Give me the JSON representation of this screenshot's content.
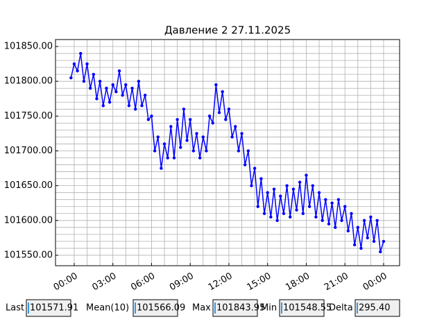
{
  "chart_data": {
    "type": "line",
    "title": "Давление 2 27.11.2025",
    "x": [
      -0.25,
      0,
      0.25,
      0.5,
      0.75,
      1,
      1.25,
      1.5,
      1.75,
      2,
      2.25,
      2.5,
      2.75,
      3,
      3.25,
      3.5,
      3.75,
      4,
      4.25,
      4.5,
      4.75,
      5,
      5.25,
      5.5,
      5.75,
      6,
      6.25,
      6.5,
      6.75,
      7,
      7.25,
      7.5,
      7.75,
      8,
      8.25,
      8.5,
      8.75,
      9,
      9.25,
      9.5,
      9.75,
      10,
      10.25,
      10.5,
      10.75,
      11,
      11.25,
      11.5,
      11.75,
      12,
      12.25,
      12.5,
      12.75,
      13,
      13.25,
      13.5,
      13.75,
      14,
      14.25,
      14.5,
      14.75,
      15,
      15.25,
      15.5,
      15.75,
      16,
      16.25,
      16.5,
      16.75,
      17,
      17.25,
      17.5,
      17.75,
      18,
      18.25,
      18.5,
      18.75,
      19,
      19.25,
      19.5,
      19.75,
      20,
      20.25,
      20.5,
      20.75,
      21,
      21.25,
      21.5,
      21.75,
      22,
      22.25,
      22.5,
      22.75,
      23,
      23.25,
      23.5,
      23.75,
      24
    ],
    "series": [
      {
        "color": "#0000ff",
        "values": [
          101805,
          101825,
          101815,
          101840,
          101800,
          101825,
          101790,
          101810,
          101775,
          101800,
          101765,
          101790,
          101770,
          101795,
          101785,
          101815,
          101780,
          101795,
          101765,
          101790,
          101760,
          101800,
          101765,
          101780,
          101745,
          101750,
          101700,
          101720,
          101675,
          101710,
          101690,
          101735,
          101690,
          101745,
          101705,
          101760,
          101715,
          101745,
          101700,
          101725,
          101690,
          101720,
          101700,
          101750,
          101740,
          101795,
          101755,
          101785,
          101745,
          101760,
          101720,
          101735,
          101700,
          101725,
          101680,
          101700,
          101650,
          101675,
          101620,
          101660,
          101610,
          101640,
          101605,
          101645,
          101600,
          101635,
          101610,
          101650,
          101605,
          101645,
          101615,
          101655,
          101610,
          101665,
          101620,
          101650,
          101605,
          101640,
          101600,
          101630,
          101595,
          101625,
          101590,
          101630,
          101600,
          101620,
          101585,
          101610,
          101565,
          101590,
          101560,
          101600,
          101575,
          101605,
          101570,
          101600,
          101555,
          101570
        ]
      }
    ],
    "xlim": [
      -1.45,
      25.24
    ],
    "xticks": [
      {
        "value": 0,
        "label": "00:00"
      },
      {
        "value": 3,
        "label": "03:00"
      },
      {
        "value": 6,
        "label": "06:00"
      },
      {
        "value": 9,
        "label": "09:00"
      },
      {
        "value": 12,
        "label": "12:00"
      },
      {
        "value": 15,
        "label": "15:00"
      },
      {
        "value": 18,
        "label": "18:00"
      },
      {
        "value": 21,
        "label": "21:00"
      },
      {
        "value": 24,
        "label": "00:00"
      }
    ],
    "ylim": [
      101535,
      101860
    ],
    "yticks": [
      {
        "value": 101550,
        "label": "101550.00"
      },
      {
        "value": 101600,
        "label": "101600.00"
      },
      {
        "value": 101650,
        "label": "101650.00"
      },
      {
        "value": 101700,
        "label": "101700.00"
      },
      {
        "value": 101750,
        "label": "101750.00"
      },
      {
        "value": 101800,
        "label": "101800.00"
      },
      {
        "value": 101850,
        "label": "101850.00"
      }
    ],
    "grid": true,
    "minor_grid": true
  },
  "readouts": [
    {
      "label": "Last",
      "value": "101571.91"
    },
    {
      "label": "Mean(10)",
      "value": "101566.09"
    },
    {
      "label": "Max",
      "value": "101843.95"
    },
    {
      "label": "Min",
      "value": "101548.55"
    },
    {
      "label": "Delta",
      "value": "295.40"
    }
  ]
}
